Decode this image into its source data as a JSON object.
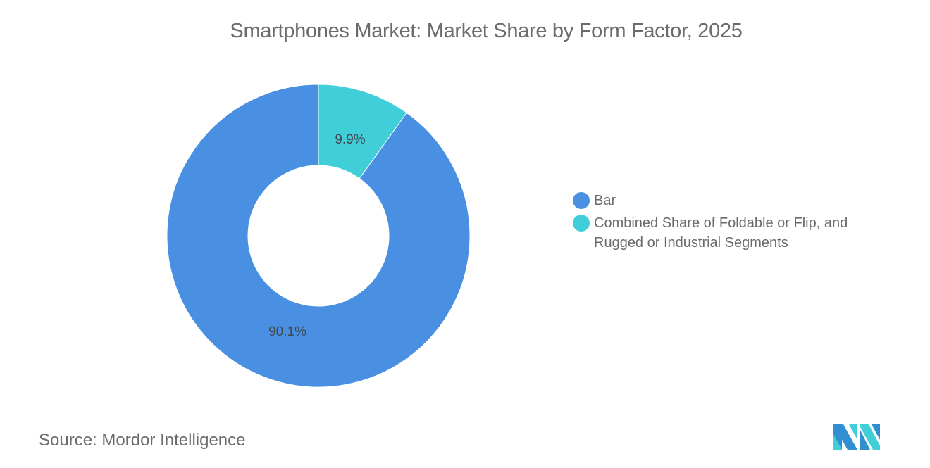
{
  "title": "Smartphones Market: Market Share by Form Factor, 2025",
  "chart_data": {
    "type": "pie",
    "subtype": "donut",
    "title": "Smartphones Market: Market Share by Form Factor, 2025",
    "categories": [
      "Bar",
      "Combined Share of Foldable or Flip, and Rugged or Industrial Segments"
    ],
    "values": [
      90.1,
      9.9
    ],
    "labels": [
      "90.1%",
      "9.9%"
    ],
    "colors": [
      "#4a90e2",
      "#40cfd9"
    ],
    "legend_position": "right"
  },
  "legend": {
    "items": [
      {
        "label": "Bar",
        "color": "#4a90e2"
      },
      {
        "label": "Combined Share of Foldable or Flip, and Rugged or Industrial Segments",
        "color": "#40cfd9"
      }
    ]
  },
  "source": {
    "label": "Source:",
    "value": "Mordor Intelligence"
  },
  "logo": {
    "name": "mordor-intelligence-logo",
    "colors": [
      "#2f8fd1",
      "#40cfd9"
    ]
  }
}
